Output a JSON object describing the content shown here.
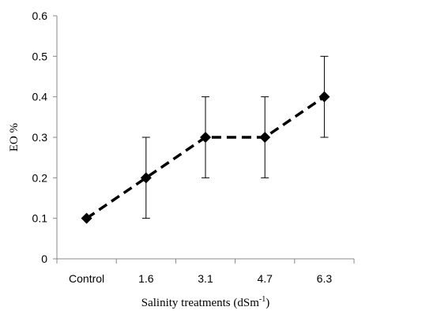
{
  "chart_data": {
    "type": "line",
    "categories": [
      "Control",
      "1.6",
      "3.1",
      "4.7",
      "6.3"
    ],
    "series": [
      {
        "values": [
          0.1,
          0.2,
          0.3,
          0.3,
          0.4
        ],
        "error_low": [
          0.1,
          0.1,
          0.2,
          0.2,
          0.3
        ],
        "error_high": [
          0.1,
          0.3,
          0.4,
          0.4,
          0.5
        ],
        "color": "#000000",
        "line_style": "dashed",
        "marker": "diamond"
      }
    ],
    "ylabel": "EO %",
    "xlabel_main": "Salinity treatments  (dSm",
    "xlabel_sup": "-1",
    "xlabel_end": ")",
    "ylim": [
      0,
      0.6
    ],
    "yticks": [
      "0",
      "0.1",
      "0.2",
      "0.3",
      "0.4",
      "0.5",
      "0.6"
    ],
    "grid": false
  }
}
